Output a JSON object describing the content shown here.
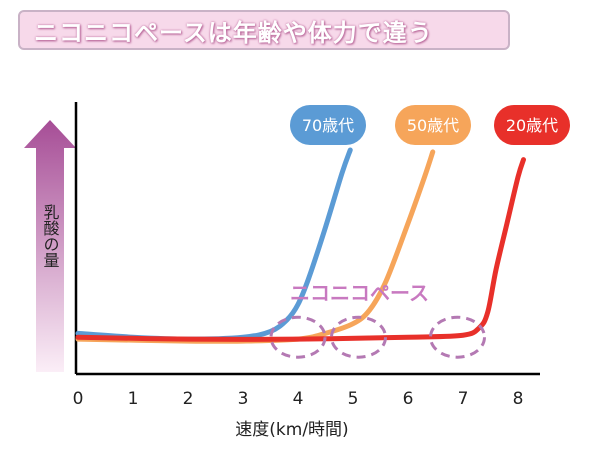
{
  "title": "ニコニコペースは年齢や体力で違う",
  "chart_data": {
    "type": "line",
    "xlabel": "速度(km/時間)",
    "ylabel": "乳酸の量",
    "xlim": [
      0,
      8
    ],
    "x_ticks": [
      "0",
      "1",
      "2",
      "3",
      "4",
      "5",
      "6",
      "7",
      "8"
    ],
    "annotation": "ニコニコペース",
    "series": [
      {
        "name": "70歳代",
        "color": "#5b9bd5",
        "points": [
          [
            0,
            0.05
          ],
          [
            1,
            0.03
          ],
          [
            2,
            0.02
          ],
          [
            3,
            0.03
          ],
          [
            3.5,
            0.06
          ],
          [
            3.8,
            0.12
          ],
          [
            4.0,
            0.2
          ],
          [
            4.2,
            0.34
          ],
          [
            4.5,
            0.6
          ],
          [
            4.8,
            0.88
          ],
          [
            4.95,
            1.0
          ]
        ]
      },
      {
        "name": "50歳代",
        "color": "#f6a55a",
        "points": [
          [
            0,
            0.02
          ],
          [
            2,
            0.01
          ],
          [
            3,
            0.01
          ],
          [
            4,
            0.02
          ],
          [
            4.5,
            0.05
          ],
          [
            5,
            0.1
          ],
          [
            5.3,
            0.17
          ],
          [
            5.6,
            0.32
          ],
          [
            6.0,
            0.62
          ],
          [
            6.3,
            0.86
          ],
          [
            6.45,
            0.99
          ]
        ]
      },
      {
        "name": "20歳代",
        "color": "#e8302a",
        "points": [
          [
            0,
            0.03
          ],
          [
            2,
            0.02
          ],
          [
            4,
            0.02
          ],
          [
            6,
            0.03
          ],
          [
            7,
            0.04
          ],
          [
            7.3,
            0.08
          ],
          [
            7.45,
            0.16
          ],
          [
            7.6,
            0.38
          ],
          [
            7.8,
            0.62
          ],
          [
            8.0,
            0.86
          ],
          [
            8.1,
            0.95
          ]
        ]
      }
    ],
    "highlight_circles": [
      {
        "x": 4.0,
        "y": 0.03
      },
      {
        "x": 5.1,
        "y": 0.03
      },
      {
        "x": 6.9,
        "y": 0.03
      }
    ]
  }
}
